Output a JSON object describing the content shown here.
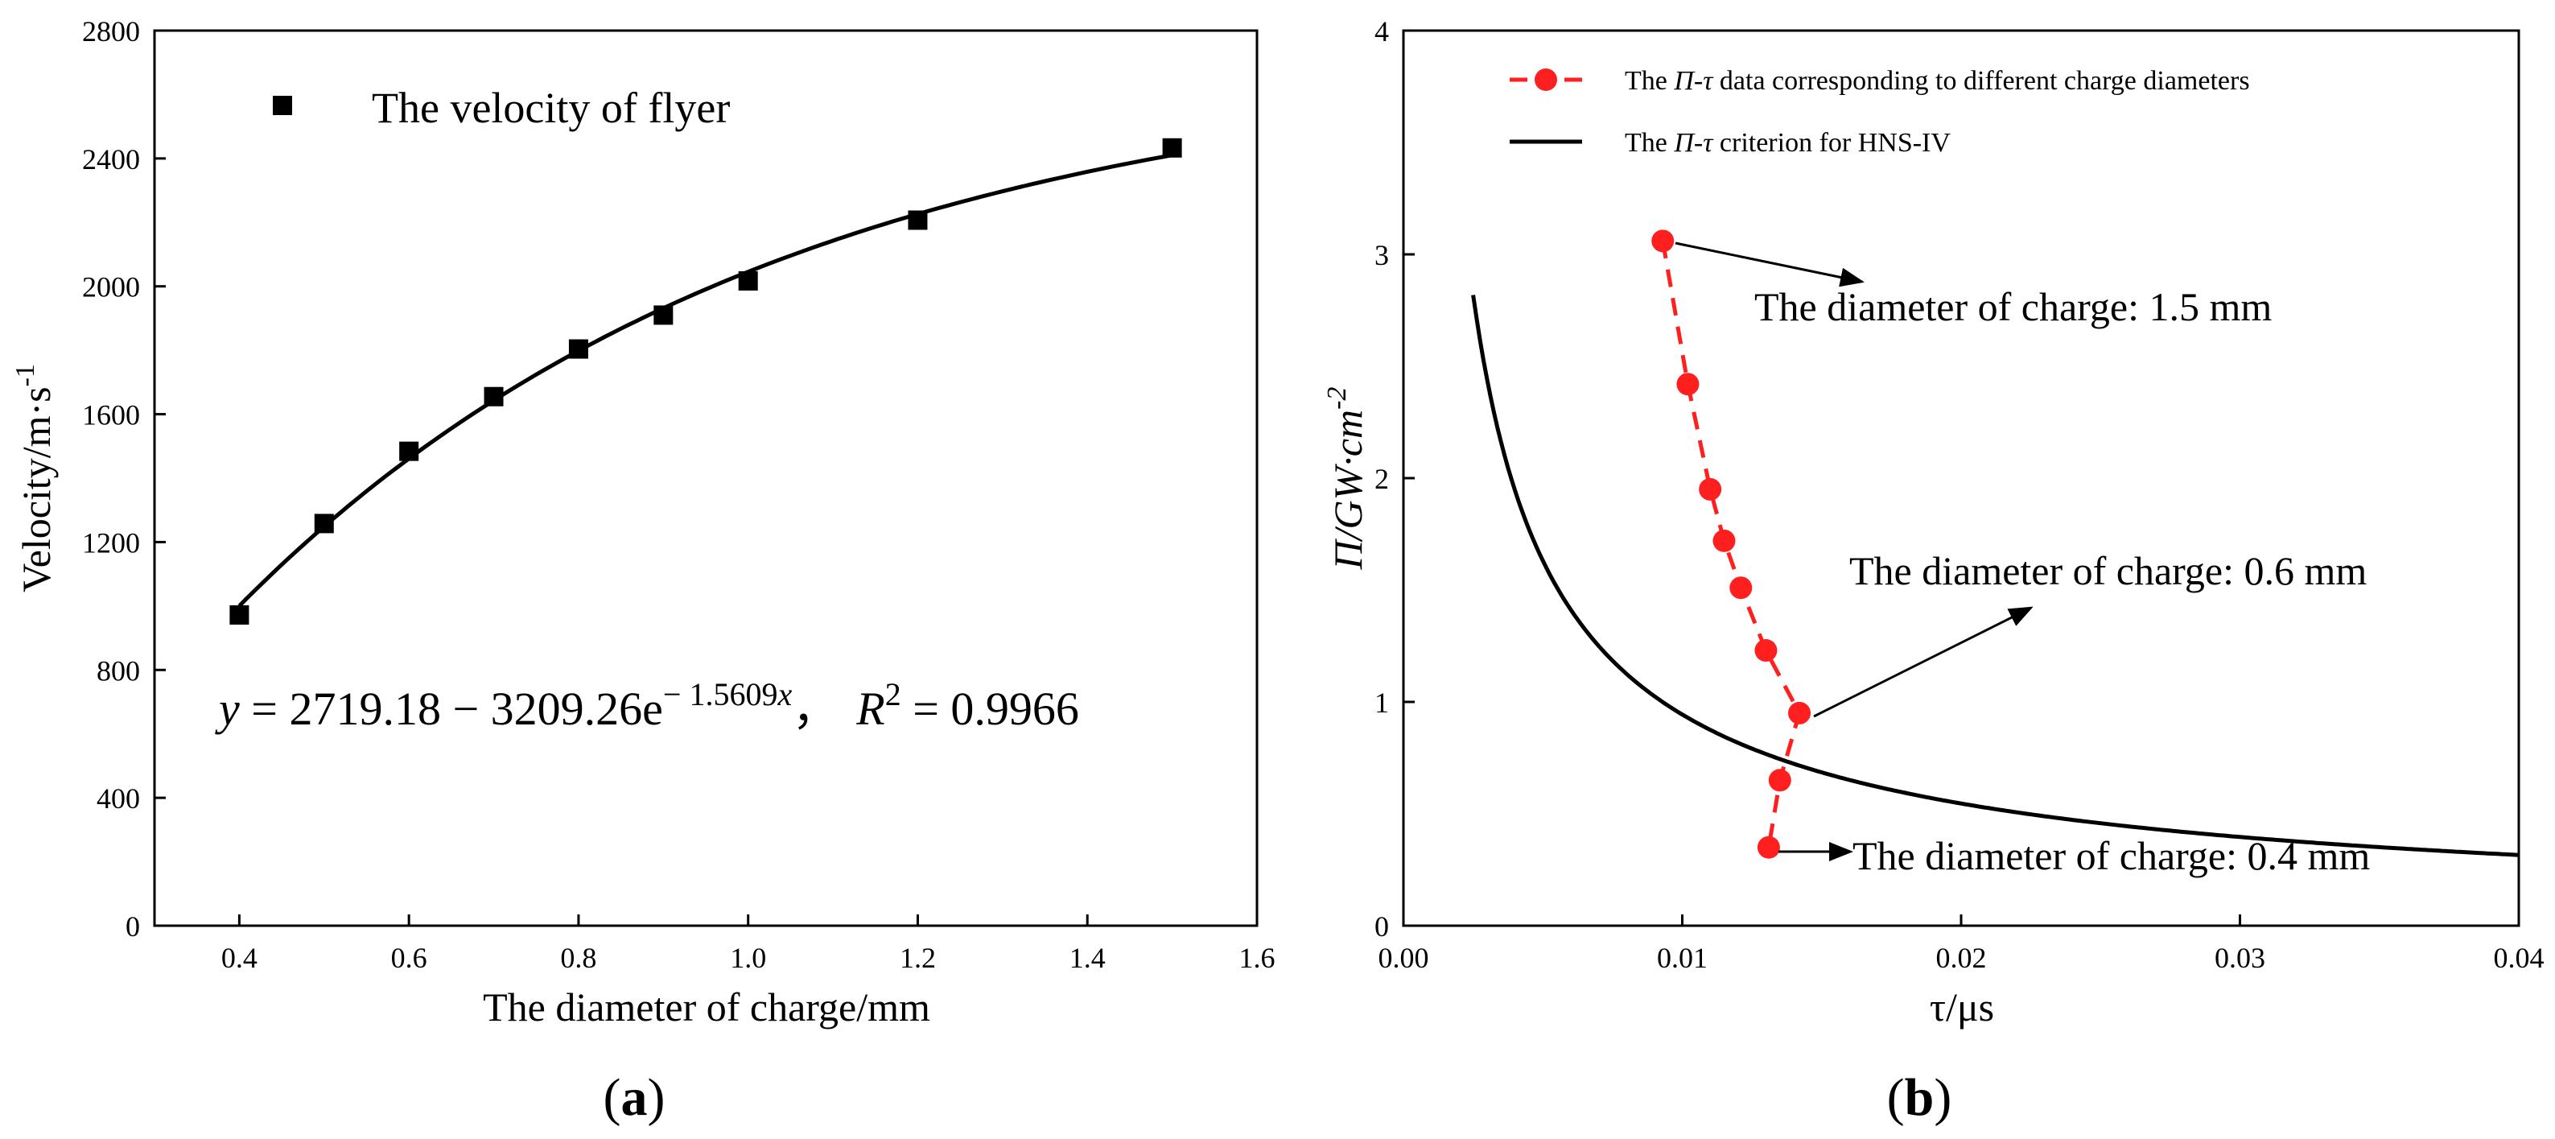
{
  "chart_data": [
    {
      "type": "scatter",
      "panel_label": "(a)",
      "panel_letter": "a",
      "xlabel": "The diameter of charge/mm",
      "ylabel": "Velocity/m·s",
      "ylabel_exponent": "-1",
      "xlim": [
        0.3,
        1.6
      ],
      "ylim": [
        0,
        2800
      ],
      "xticks": [
        0.4,
        0.6,
        0.8,
        1.0,
        1.2,
        1.4,
        1.6
      ],
      "xtick_labels": [
        "0.4",
        "0.6",
        "0.8",
        "1.0",
        "1.2",
        "1.4",
        "1.6"
      ],
      "yticks": [
        0,
        400,
        800,
        1200,
        1600,
        2000,
        2400,
        2800
      ],
      "ytick_labels": [
        "0",
        "400",
        "800",
        "1200",
        "1600",
        "2000",
        "2400",
        "2800"
      ],
      "legend": {
        "position": "top-left",
        "entries": [
          "The velocity of flyer"
        ]
      },
      "series": [
        {
          "name": "The velocity of flyer",
          "marker": "square",
          "x": [
            0.4,
            0.5,
            0.6,
            0.7,
            0.8,
            0.9,
            1.0,
            1.2,
            1.5
          ],
          "y": [
            972,
            1258,
            1484,
            1655,
            1804,
            1910,
            2017,
            2207,
            2433
          ]
        }
      ],
      "fit": {
        "a": 2719.18,
        "b": 3209.26,
        "k": 1.5609,
        "x_range": [
          0.4,
          1.5
        ],
        "equation_parts": {
          "y": "y",
          "rhs": " = 2719.18 − 3209.26e",
          "exponent": "− 1.5609",
          "exponent_var": "x",
          "sep": "，",
          "r": "R",
          "r_exp": "2",
          "r_value": " = 0.9966"
        }
      }
    },
    {
      "type": "line",
      "panel_label": "(b)",
      "panel_letter": "b",
      "xlabel": "τ/μs",
      "ylabel": "Π/GW·cm",
      "ylabel_exponent": "-2",
      "xlim": [
        0.0,
        0.04
      ],
      "ylim": [
        0,
        4
      ],
      "xticks": [
        0.0,
        0.01,
        0.02,
        0.03,
        0.04
      ],
      "xtick_labels": [
        "0.00",
        "0.01",
        "0.02",
        "0.03",
        "0.04"
      ],
      "yticks": [
        0,
        1,
        2,
        3,
        4
      ],
      "ytick_labels": [
        "0",
        "1",
        "2",
        "3",
        "4"
      ],
      "legend": {
        "position": "top-right",
        "entries": [
          {
            "pre": "The ",
            "ital": "Π-τ",
            "post": " data corresponding to different charge diameters"
          },
          {
            "pre": "The ",
            "ital": "Π-τ",
            "post": " criterion for HNS-IV"
          }
        ]
      },
      "series": [
        {
          "name": "The Π-τ data corresponding to different charge diameters",
          "style": "red dashed with circle markers",
          "x": [
            0.0093,
            0.0102,
            0.011,
            0.0115,
            0.0121,
            0.013,
            0.0142,
            0.0135,
            0.0131
          ],
          "y": [
            3.06,
            2.42,
            1.95,
            1.72,
            1.51,
            1.23,
            0.95,
            0.65,
            0.35
          ]
        },
        {
          "name": "The Π-τ criterion for HNS-IV",
          "style": "solid black",
          "model": "Π = c / τ^n",
          "c": 0.0249,
          "n": 0.7893,
          "x_range": [
            0.0025,
            0.04
          ]
        }
      ],
      "annotations": [
        {
          "text": "The diameter of charge: 1.5 mm",
          "x": 0.0093,
          "y": 3.06
        },
        {
          "text": "The diameter of charge: 0.6 mm",
          "x": 0.0142,
          "y": 0.95
        },
        {
          "text": "The diameter of charge: 0.4 mm",
          "x": 0.0131,
          "y": 0.35
        }
      ]
    }
  ],
  "colors": {
    "axis": "#000000",
    "marker_a": "#000000",
    "data_b": "#ff1f1f",
    "criterion": "#000000"
  }
}
